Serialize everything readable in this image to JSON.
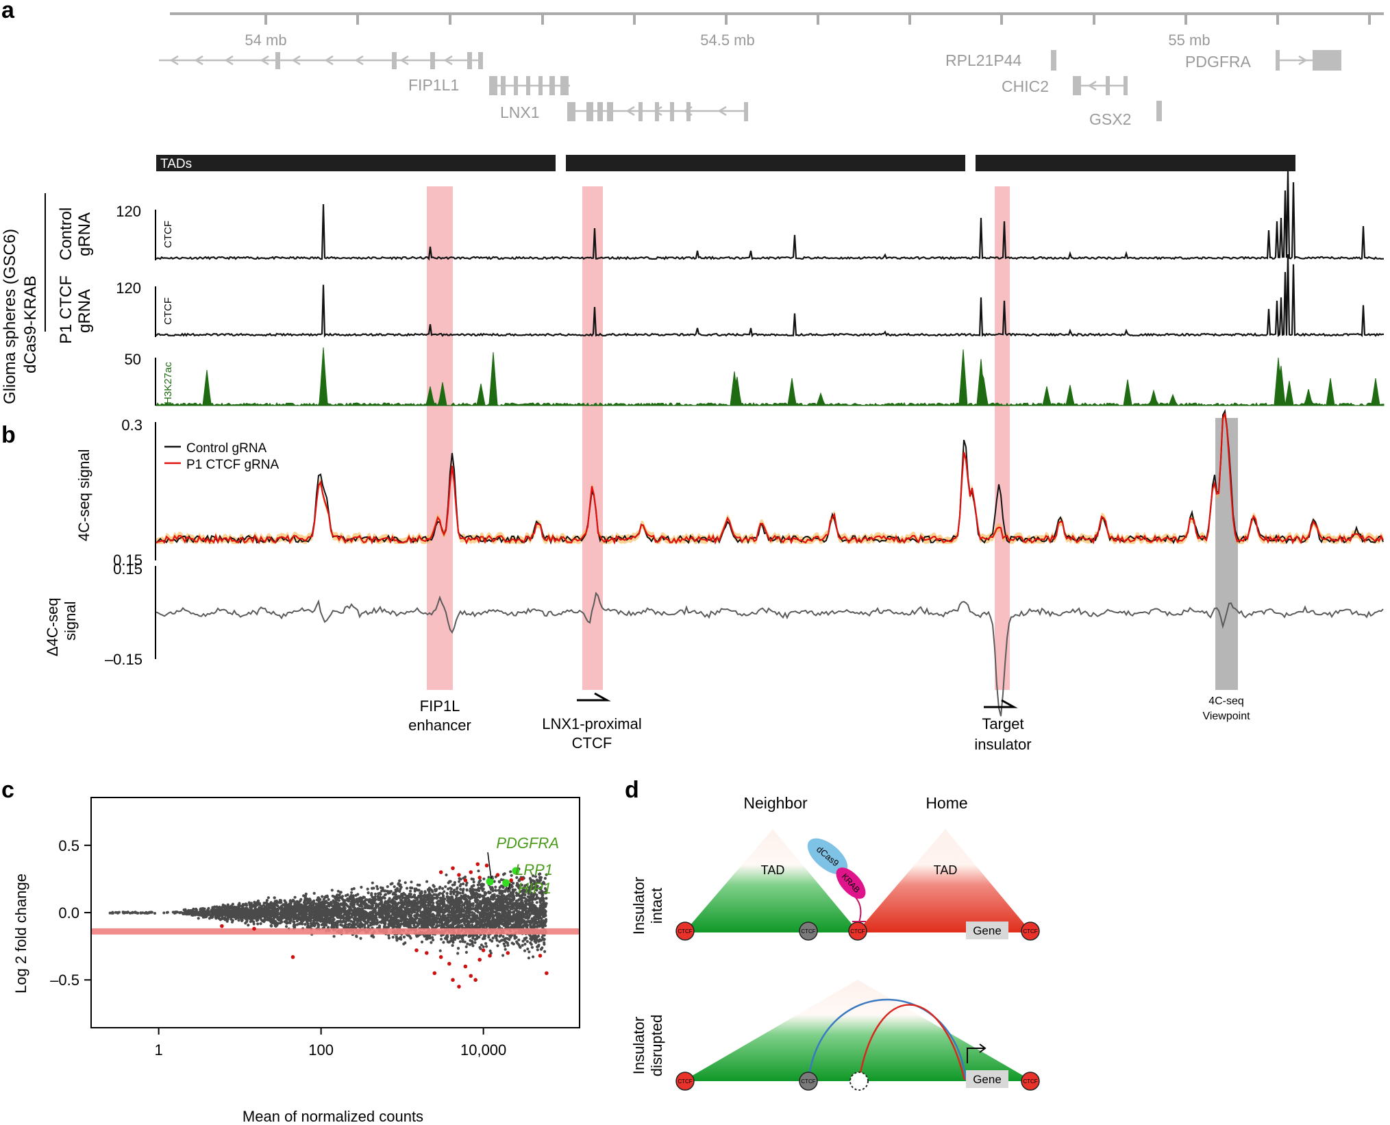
{
  "panel_labels": {
    "a": "a",
    "b": "b",
    "c": "c",
    "d": "d"
  },
  "colors": {
    "gene_gray": "#bdbdbd",
    "track_black": "#111111",
    "h3k27ac_green": "#1e6b12",
    "highlight_pink": "#f4a9ad",
    "viewpoint_gray": "#9e9e9e",
    "control_line": "#111111",
    "p1_line": "#e0110e",
    "delta_line": "#5a5a5a",
    "ma_points": "#4a4a4a",
    "sig_points": "#cc1111",
    "hit_green": "#33dd22",
    "label_green": "#4a9a1a",
    "tad_green": "#1a9a2a",
    "tad_red": "#e0311e",
    "ctcf_red": "#e8322a",
    "ctcf_gray": "#7a7a7a",
    "dcas9_blue": "#7ec2e6",
    "krab_magenta": "#e0148a"
  },
  "panel_a": {
    "coordinates": [
      "54 mb",
      "54.5 mb",
      "55 mb"
    ],
    "genes": [
      "FIP1L1",
      "LNX1",
      "RPL21P44",
      "CHIC2",
      "GSX2",
      "PDGFRA"
    ],
    "tad_label": "TADs",
    "sample_group": [
      "Glioma spheres (GSC6)",
      "dCas9-KRAB"
    ],
    "conditions": [
      {
        "line1": "Control",
        "line2": "gRNA"
      },
      {
        "line1": "P1 CTCF",
        "line2": "gRNA"
      }
    ],
    "tracks": [
      {
        "label": "CTCF",
        "max": "120"
      },
      {
        "label": "CTCF",
        "max": "120"
      },
      {
        "label": "H3K27ac",
        "max": "50"
      }
    ]
  },
  "panel_b": {
    "ylabel_4c": "4C-seq signal",
    "ymax_4c": "0.3",
    "ymin_4c": "0.15",
    "legend": [
      "Control gRNA",
      "P1 CTCF gRNA"
    ],
    "ylabel_delta": [
      "Δ4C-seq",
      "signal"
    ],
    "ymax_delta": "0.15",
    "ymin_delta": "–0.15",
    "annotations": {
      "fip1l": [
        "FIP1L",
        "enhancer"
      ],
      "lnx1": [
        "LNX1-proximal",
        "CTCF"
      ],
      "target": [
        "Target",
        "insulator"
      ],
      "viewpoint": [
        "4C-seq",
        "Viewpoint"
      ]
    }
  },
  "chart_data": {
    "type": "scatter",
    "title": "",
    "xlabel": "Mean of normalized counts",
    "ylabel": "Log 2 fold change",
    "xscale": "log",
    "xlim": [
      0.15,
      150000
    ],
    "ylim": [
      -0.85,
      0.85
    ],
    "xticks": [
      "1",
      "100",
      "10,000"
    ],
    "yticks": [
      "0.5",
      "0.0",
      "–0.5"
    ],
    "highlighted_genes": [
      {
        "name": "PDGFRA",
        "x": 12000,
        "y": 0.23
      },
      {
        "name": "LRP1",
        "x": 25000,
        "y": 0.31
      },
      {
        "name": "HIP1",
        "x": 19000,
        "y": 0.22
      }
    ],
    "significant_points": [
      {
        "x": 5000,
        "y": 0.28
      },
      {
        "x": 7000,
        "y": 0.3
      },
      {
        "x": 9000,
        "y": 0.26
      },
      {
        "x": 15000,
        "y": 0.28
      },
      {
        "x": 22000,
        "y": 0.24
      },
      {
        "x": 3000,
        "y": 0.3
      },
      {
        "x": 11000,
        "y": 0.35
      },
      {
        "x": 30000,
        "y": 0.25
      },
      {
        "x": 6000,
        "y": 0.24
      },
      {
        "x": 4200,
        "y": 0.33
      },
      {
        "x": 8500,
        "y": 0.36
      },
      {
        "x": 2000,
        "y": -0.3
      },
      {
        "x": 3000,
        "y": -0.33
      },
      {
        "x": 3800,
        "y": -0.38
      },
      {
        "x": 4200,
        "y": -0.5
      },
      {
        "x": 5000,
        "y": -0.55
      },
      {
        "x": 6000,
        "y": -0.4
      },
      {
        "x": 7000,
        "y": -0.47
      },
      {
        "x": 9000,
        "y": -0.35
      },
      {
        "x": 12000,
        "y": -0.32
      },
      {
        "x": 2500,
        "y": -0.45
      },
      {
        "x": 8000,
        "y": -0.5
      },
      {
        "x": 20000,
        "y": -0.3
      },
      {
        "x": 50000,
        "y": -0.32
      },
      {
        "x": 60000,
        "y": -0.45
      },
      {
        "x": 1500,
        "y": -0.28
      },
      {
        "x": 10000,
        "y": -0.28
      },
      {
        "x": 45,
        "y": -0.33
      },
      {
        "x": 6,
        "y": -0.1
      },
      {
        "x": 15,
        "y": -0.12
      }
    ]
  },
  "panel_d": {
    "neighbor": "Neighbor",
    "home": "Home",
    "tad": "TAD",
    "insulator_intact": [
      "Insulator",
      "intact"
    ],
    "insulator_disrupted": [
      "Insulator",
      "disrupted"
    ],
    "ctcf": "CTCF",
    "dcas9": "dCas9",
    "krab": "KRAB",
    "gene": "Gene"
  }
}
